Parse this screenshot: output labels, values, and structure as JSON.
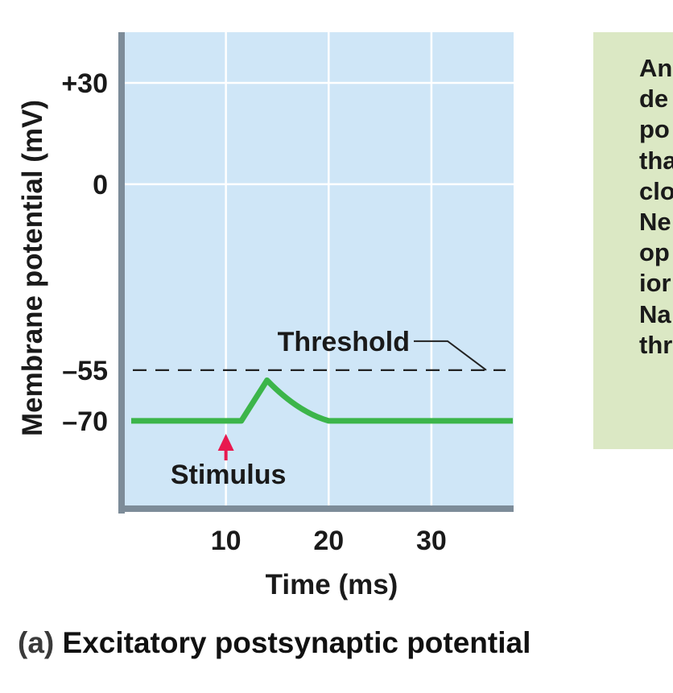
{
  "chart_data": {
    "type": "line",
    "xlabel": "Time (ms)",
    "ylabel": "Membrane potential (mV)",
    "x_ticks": [
      10,
      20,
      30
    ],
    "y_ticks": [
      {
        "value": 30,
        "label": "+30"
      },
      {
        "value": 0,
        "label": "0"
      },
      {
        "value": -55,
        "label": "–55"
      },
      {
        "value": -70,
        "label": "–70"
      }
    ],
    "xlim": [
      0,
      38
    ],
    "ylim": [
      -96,
      45
    ],
    "grid": true,
    "series": [
      {
        "x": [
          0,
          10,
          11.5,
          14,
          17,
          20,
          38
        ],
        "y": [
          -70,
          -70,
          -70,
          -58,
          -66,
          -70,
          -70
        ],
        "color": "#3cb54a"
      }
    ],
    "threshold": {
      "value": -55,
      "label": "Threshold"
    },
    "stimulus": {
      "x": 10,
      "label": "Stimulus",
      "color": "#e8194f"
    },
    "plot_bg": "#cfe6f7",
    "axis_color": "#7d8c99"
  },
  "note": {
    "lines": [
      "An",
      "de",
      "po",
      "tha",
      "clo",
      "Ne",
      "op",
      "ior",
      "Na",
      "thr"
    ]
  },
  "caption": {
    "letter": "(a)",
    "text": "Excitatory postsynaptic potential"
  }
}
